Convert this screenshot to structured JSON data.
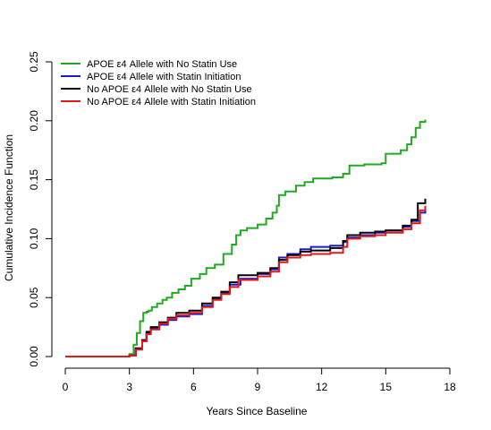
{
  "chart_data": {
    "type": "line",
    "title": "",
    "xlabel": "Years Since Baseline",
    "ylabel": "Cumulative Incidence Function",
    "xlim": [
      0,
      18
    ],
    "ylim": [
      0,
      0.25
    ],
    "xticks": [
      "0",
      "3",
      "6",
      "9",
      "12",
      "15",
      "18"
    ],
    "yticks": [
      "0.00",
      "0.05",
      "0.10",
      "0.15",
      "0.20",
      "0.25"
    ],
    "grid": false,
    "legend_position": "top-left",
    "step": true,
    "series": [
      {
        "name": "APOE ε4 Allele with No Statin Use",
        "color": "#22aa22",
        "x": [
          0,
          3.0,
          3.2,
          3.35,
          3.5,
          3.65,
          3.8,
          3.9,
          4.05,
          4.3,
          4.55,
          4.75,
          5.0,
          5.3,
          5.6,
          5.9,
          6.3,
          6.6,
          7.0,
          7.4,
          7.8,
          8.0,
          8.2,
          8.5,
          9.0,
          9.4,
          9.7,
          9.9,
          10.0,
          10.3,
          10.8,
          11.2,
          11.6,
          12.5,
          13.0,
          13.3,
          14.0,
          14.8,
          15.0,
          15.7,
          16.0,
          16.2,
          16.4,
          16.6,
          16.85
        ],
        "y": [
          0,
          0.002,
          0.01,
          0.02,
          0.03,
          0.037,
          0.038,
          0.039,
          0.042,
          0.045,
          0.048,
          0.05,
          0.054,
          0.057,
          0.06,
          0.066,
          0.07,
          0.075,
          0.078,
          0.087,
          0.095,
          0.103,
          0.107,
          0.109,
          0.112,
          0.117,
          0.122,
          0.128,
          0.137,
          0.14,
          0.145,
          0.148,
          0.151,
          0.152,
          0.155,
          0.162,
          0.163,
          0.164,
          0.172,
          0.175,
          0.18,
          0.186,
          0.194,
          0.199,
          0.201
        ]
      },
      {
        "name": "APOE ε4 Allele with Statin Initiation",
        "color": "#1a1ad6",
        "x": [
          0,
          3.0,
          3.3,
          3.6,
          3.8,
          4.0,
          4.4,
          4.8,
          5.2,
          5.8,
          6.4,
          6.9,
          7.3,
          7.7,
          8.2,
          9.0,
          9.6,
          10.0,
          10.4,
          11.0,
          11.5,
          12.4,
          13.0,
          13.2,
          13.8,
          14.5,
          15.0,
          15.8,
          16.2,
          16.6,
          16.85
        ],
        "y": [
          0,
          0.001,
          0.006,
          0.013,
          0.02,
          0.024,
          0.027,
          0.031,
          0.034,
          0.036,
          0.043,
          0.049,
          0.054,
          0.061,
          0.066,
          0.07,
          0.074,
          0.084,
          0.087,
          0.091,
          0.093,
          0.094,
          0.097,
          0.101,
          0.103,
          0.105,
          0.107,
          0.11,
          0.115,
          0.122,
          0.126
        ]
      },
      {
        "name": "No APOE ε4 Allele with No Statin Use",
        "color": "#000000",
        "x": [
          0,
          3.0,
          3.3,
          3.6,
          3.8,
          4.0,
          4.4,
          4.8,
          5.2,
          5.8,
          6.4,
          6.9,
          7.3,
          7.7,
          8.1,
          9.0,
          9.6,
          10.0,
          10.4,
          11.0,
          11.5,
          12.4,
          13.0,
          13.2,
          13.8,
          14.5,
          15.0,
          15.8,
          16.2,
          16.5,
          16.85
        ],
        "y": [
          0,
          0.001,
          0.007,
          0.014,
          0.021,
          0.025,
          0.029,
          0.033,
          0.037,
          0.039,
          0.045,
          0.05,
          0.055,
          0.063,
          0.069,
          0.071,
          0.075,
          0.082,
          0.086,
          0.089,
          0.09,
          0.092,
          0.098,
          0.103,
          0.105,
          0.106,
          0.107,
          0.111,
          0.116,
          0.13,
          0.134
        ]
      },
      {
        "name": "No APOE ε4 Allele with Statin Initiation",
        "color": "#e01818",
        "x": [
          0,
          3.0,
          3.3,
          3.6,
          3.8,
          4.0,
          4.4,
          4.8,
          5.2,
          5.8,
          6.4,
          6.9,
          7.3,
          7.7,
          8.1,
          9.0,
          9.6,
          10.0,
          10.4,
          11.0,
          11.5,
          12.4,
          13.0,
          13.2,
          13.8,
          14.5,
          15.0,
          15.8,
          16.2,
          16.6,
          16.85
        ],
        "y": [
          0,
          0.001,
          0.006,
          0.013,
          0.019,
          0.023,
          0.028,
          0.032,
          0.035,
          0.037,
          0.042,
          0.048,
          0.053,
          0.059,
          0.065,
          0.068,
          0.072,
          0.08,
          0.084,
          0.086,
          0.087,
          0.088,
          0.093,
          0.1,
          0.102,
          0.103,
          0.105,
          0.108,
          0.113,
          0.124,
          0.128
        ]
      }
    ]
  }
}
